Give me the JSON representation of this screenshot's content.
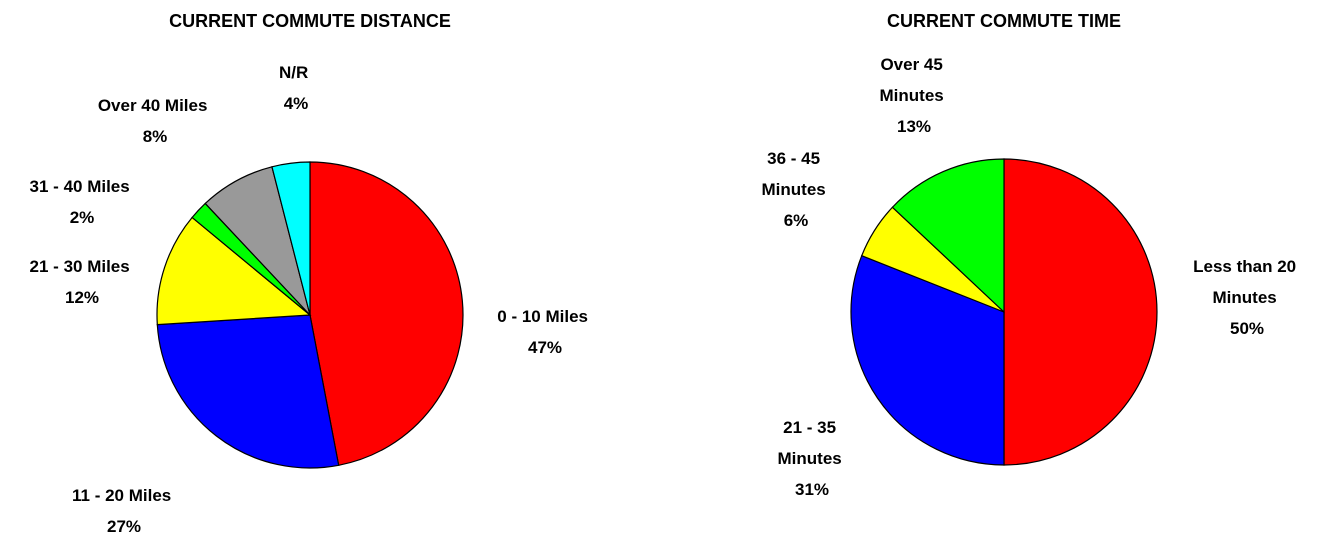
{
  "chart_data": [
    {
      "type": "pie",
      "title": "CURRENT COMMUTE DISTANCE",
      "slices": [
        {
          "label": "0 - 10 Miles",
          "value": 47,
          "value_label": "47%",
          "color": "#ff0000"
        },
        {
          "label": "11 - 20 Miles",
          "value": 27,
          "value_label": "27%",
          "color": "#0000ff"
        },
        {
          "label": "21 - 30 Miles",
          "value": 12,
          "value_label": "12%",
          "color": "#ffff00"
        },
        {
          "label": "31 - 40 Miles",
          "value": 2,
          "value_label": "2%",
          "color": "#00ff00"
        },
        {
          "label": "Over 40 Miles",
          "value": 8,
          "value_label": "8%",
          "color": "#999999"
        },
        {
          "label": "N/R",
          "value": 4,
          "value_label": "4%",
          "color": "#00ffff"
        }
      ],
      "start_angle_deg": 0,
      "direction": "clockwise"
    },
    {
      "type": "pie",
      "title": "CURRENT COMMUTE TIME",
      "slices": [
        {
          "label": "Less than 20 Minutes",
          "value": 50,
          "value_label": "50%",
          "color": "#ff0000"
        },
        {
          "label": "21 - 35 Minutes",
          "value": 31,
          "value_label": "31%",
          "color": "#0000ff"
        },
        {
          "label": "36 - 45 Minutes",
          "value": 6,
          "value_label": "6%",
          "color": "#ffff00"
        },
        {
          "label": "Over 45 Minutes",
          "value": 13,
          "value_label": "13%",
          "color": "#00ff00"
        }
      ],
      "start_angle_deg": 0,
      "direction": "clockwise"
    }
  ]
}
